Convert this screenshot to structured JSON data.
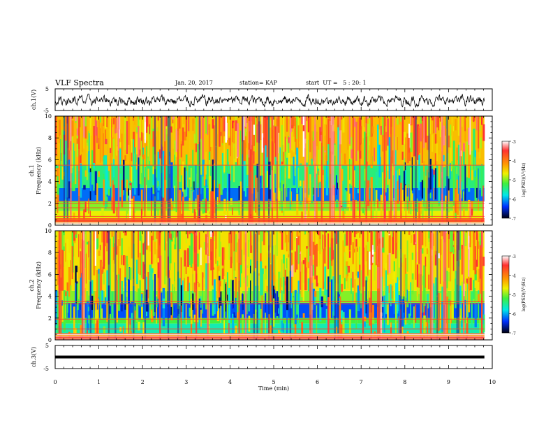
{
  "header": {
    "title": "VLF Spectra",
    "date": "Jan. 20, 2017",
    "station": "station= KAP",
    "start_ut": "start  UT =   5 : 20: 1"
  },
  "chart_data": [
    {
      "type": "line",
      "name": "ch1-waveform",
      "ylabel": "ch.1(V)",
      "yticks": [
        "5",
        "-5"
      ],
      "ylim": [
        -5,
        5
      ],
      "xlim": [
        0,
        10
      ]
    },
    {
      "type": "heatmap",
      "name": "ch1-spectrogram",
      "ylabel": "ch.1\nFrequency (kHz)",
      "ylabel_lines": [
        "ch.1",
        "Frequency (kHz)"
      ],
      "ylim": [
        0,
        10
      ],
      "yticks": [
        0,
        2,
        4,
        6,
        8,
        10
      ],
      "xlim": [
        0,
        10
      ],
      "colorbar": {
        "label": "log(PSD)(V²/Hz)",
        "range": [
          -7,
          -3
        ],
        "ticks": [
          "-3",
          "-4",
          "-5",
          "-6",
          "-7"
        ]
      },
      "bands": [
        {
          "f": [
            0,
            0.6
          ],
          "level": "mixed"
        },
        {
          "f": [
            0.6,
            1.3
          ],
          "level": -4.7
        },
        {
          "f": [
            1.3,
            2.2
          ],
          "level": -5.0
        },
        {
          "f": [
            2.2,
            3.4
          ],
          "level": -6.2
        },
        {
          "f": [
            3.4,
            5.5
          ],
          "level": -5.4
        },
        {
          "f": [
            5.5,
            10
          ],
          "level": -4.4
        }
      ],
      "lines_khz": [
        5.5,
        2.2,
        2.0,
        1.6,
        0.8,
        0.6,
        0.3
      ]
    },
    {
      "type": "heatmap",
      "name": "ch2-spectrogram",
      "ylabel_lines": [
        "ch.2",
        "Frequency (kHz)"
      ],
      "ylim": [
        0,
        10
      ],
      "yticks": [
        0,
        2,
        4,
        6,
        8,
        10
      ],
      "xlim": [
        0,
        10
      ],
      "colorbar": {
        "label": "log(PSD)(V²/Hz)",
        "range": [
          -7,
          -3
        ],
        "ticks": [
          "-3",
          "-4",
          "-5",
          "-6",
          "-7"
        ]
      },
      "bands": [
        {
          "f": [
            0,
            0.5
          ],
          "level": "mixed"
        },
        {
          "f": [
            0.5,
            1.5
          ],
          "level": -5.6
        },
        {
          "f": [
            1.5,
            2.0
          ],
          "level": -5.2
        },
        {
          "f": [
            2.0,
            3.4
          ],
          "level": -6.3
        },
        {
          "f": [
            3.4,
            4.5
          ],
          "level": -5.0
        },
        {
          "f": [
            4.5,
            10
          ],
          "level": -4.6
        }
      ],
      "lines_khz": [
        3.5,
        3.3,
        1.9,
        1.0,
        0.5
      ]
    },
    {
      "type": "line",
      "name": "ch3-waveform",
      "ylabel": "ch.3(V)",
      "yticks": [
        "5",
        "-5"
      ],
      "ylim": [
        -5,
        5
      ],
      "xlim": [
        0,
        10
      ],
      "constant_value": 0
    }
  ],
  "xaxis": {
    "label": "Time (min)",
    "ticks": [
      "0",
      "1",
      "2",
      "3",
      "4",
      "5",
      "6",
      "7",
      "8",
      "9",
      "10"
    ],
    "range": [
      0,
      10
    ]
  }
}
